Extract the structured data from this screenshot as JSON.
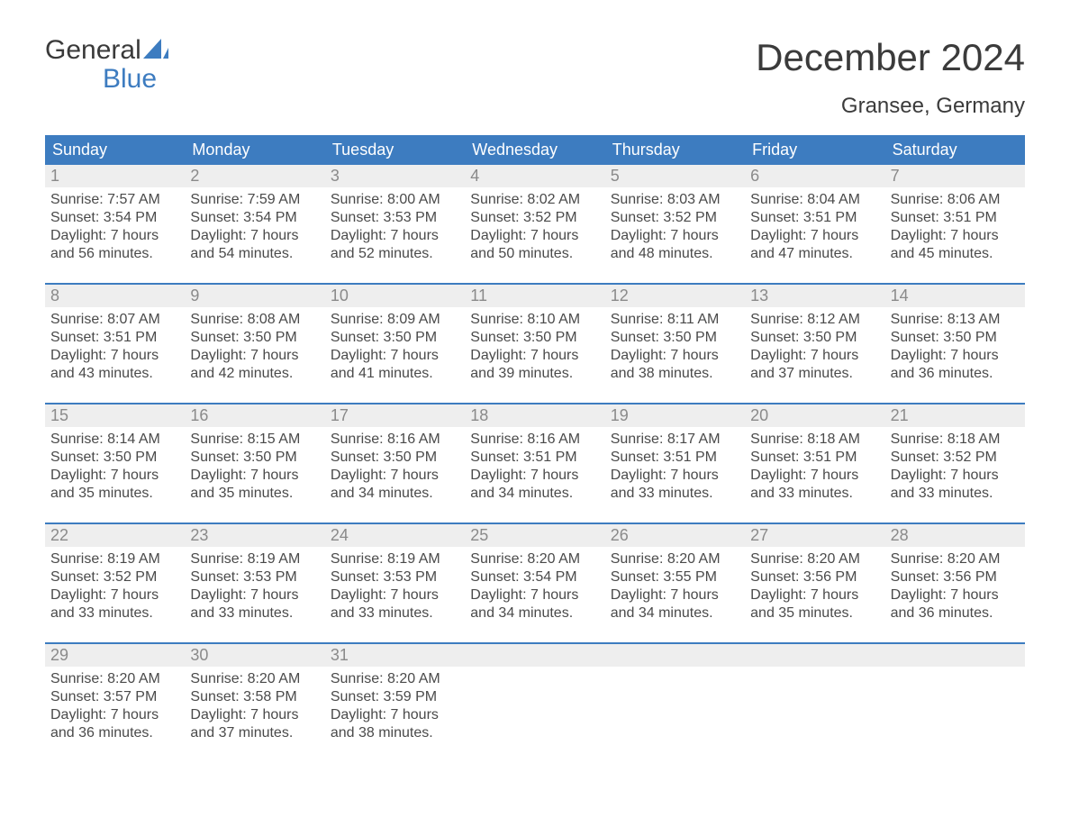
{
  "logo": {
    "line1": "General",
    "line2": "Blue"
  },
  "title": "December 2024",
  "location": "Gransee, Germany",
  "colors": {
    "header_bg": "#3d7cc0",
    "header_text": "#ffffff",
    "daynum_bg": "#eeeeee",
    "daynum_text": "#8a8a8a",
    "body_text": "#4a4a4a",
    "week_border": "#3d7cc0",
    "logo_blue": "#3d7cc0",
    "page_bg": "#ffffff"
  },
  "typography": {
    "title_fontsize": 42,
    "subtitle_fontsize": 24,
    "weekday_fontsize": 18,
    "daynum_fontsize": 18,
    "body_fontsize": 16,
    "font_family": "Arial"
  },
  "weekdays": [
    "Sunday",
    "Monday",
    "Tuesday",
    "Wednesday",
    "Thursday",
    "Friday",
    "Saturday"
  ],
  "labels": {
    "sunrise": "Sunrise",
    "sunset": "Sunset",
    "daylight": "Daylight"
  },
  "weeks": [
    [
      {
        "day": 1,
        "sunrise": "7:57 AM",
        "sunset": "3:54 PM",
        "daylight": "7 hours and 56 minutes."
      },
      {
        "day": 2,
        "sunrise": "7:59 AM",
        "sunset": "3:54 PM",
        "daylight": "7 hours and 54 minutes."
      },
      {
        "day": 3,
        "sunrise": "8:00 AM",
        "sunset": "3:53 PM",
        "daylight": "7 hours and 52 minutes."
      },
      {
        "day": 4,
        "sunrise": "8:02 AM",
        "sunset": "3:52 PM",
        "daylight": "7 hours and 50 minutes."
      },
      {
        "day": 5,
        "sunrise": "8:03 AM",
        "sunset": "3:52 PM",
        "daylight": "7 hours and 48 minutes."
      },
      {
        "day": 6,
        "sunrise": "8:04 AM",
        "sunset": "3:51 PM",
        "daylight": "7 hours and 47 minutes."
      },
      {
        "day": 7,
        "sunrise": "8:06 AM",
        "sunset": "3:51 PM",
        "daylight": "7 hours and 45 minutes."
      }
    ],
    [
      {
        "day": 8,
        "sunrise": "8:07 AM",
        "sunset": "3:51 PM",
        "daylight": "7 hours and 43 minutes."
      },
      {
        "day": 9,
        "sunrise": "8:08 AM",
        "sunset": "3:50 PM",
        "daylight": "7 hours and 42 minutes."
      },
      {
        "day": 10,
        "sunrise": "8:09 AM",
        "sunset": "3:50 PM",
        "daylight": "7 hours and 41 minutes."
      },
      {
        "day": 11,
        "sunrise": "8:10 AM",
        "sunset": "3:50 PM",
        "daylight": "7 hours and 39 minutes."
      },
      {
        "day": 12,
        "sunrise": "8:11 AM",
        "sunset": "3:50 PM",
        "daylight": "7 hours and 38 minutes."
      },
      {
        "day": 13,
        "sunrise": "8:12 AM",
        "sunset": "3:50 PM",
        "daylight": "7 hours and 37 minutes."
      },
      {
        "day": 14,
        "sunrise": "8:13 AM",
        "sunset": "3:50 PM",
        "daylight": "7 hours and 36 minutes."
      }
    ],
    [
      {
        "day": 15,
        "sunrise": "8:14 AM",
        "sunset": "3:50 PM",
        "daylight": "7 hours and 35 minutes."
      },
      {
        "day": 16,
        "sunrise": "8:15 AM",
        "sunset": "3:50 PM",
        "daylight": "7 hours and 35 minutes."
      },
      {
        "day": 17,
        "sunrise": "8:16 AM",
        "sunset": "3:50 PM",
        "daylight": "7 hours and 34 minutes."
      },
      {
        "day": 18,
        "sunrise": "8:16 AM",
        "sunset": "3:51 PM",
        "daylight": "7 hours and 34 minutes."
      },
      {
        "day": 19,
        "sunrise": "8:17 AM",
        "sunset": "3:51 PM",
        "daylight": "7 hours and 33 minutes."
      },
      {
        "day": 20,
        "sunrise": "8:18 AM",
        "sunset": "3:51 PM",
        "daylight": "7 hours and 33 minutes."
      },
      {
        "day": 21,
        "sunrise": "8:18 AM",
        "sunset": "3:52 PM",
        "daylight": "7 hours and 33 minutes."
      }
    ],
    [
      {
        "day": 22,
        "sunrise": "8:19 AM",
        "sunset": "3:52 PM",
        "daylight": "7 hours and 33 minutes."
      },
      {
        "day": 23,
        "sunrise": "8:19 AM",
        "sunset": "3:53 PM",
        "daylight": "7 hours and 33 minutes."
      },
      {
        "day": 24,
        "sunrise": "8:19 AM",
        "sunset": "3:53 PM",
        "daylight": "7 hours and 33 minutes."
      },
      {
        "day": 25,
        "sunrise": "8:20 AM",
        "sunset": "3:54 PM",
        "daylight": "7 hours and 34 minutes."
      },
      {
        "day": 26,
        "sunrise": "8:20 AM",
        "sunset": "3:55 PM",
        "daylight": "7 hours and 34 minutes."
      },
      {
        "day": 27,
        "sunrise": "8:20 AM",
        "sunset": "3:56 PM",
        "daylight": "7 hours and 35 minutes."
      },
      {
        "day": 28,
        "sunrise": "8:20 AM",
        "sunset": "3:56 PM",
        "daylight": "7 hours and 36 minutes."
      }
    ],
    [
      {
        "day": 29,
        "sunrise": "8:20 AM",
        "sunset": "3:57 PM",
        "daylight": "7 hours and 36 minutes."
      },
      {
        "day": 30,
        "sunrise": "8:20 AM",
        "sunset": "3:58 PM",
        "daylight": "7 hours and 37 minutes."
      },
      {
        "day": 31,
        "sunrise": "8:20 AM",
        "sunset": "3:59 PM",
        "daylight": "7 hours and 38 minutes."
      },
      null,
      null,
      null,
      null
    ]
  ]
}
